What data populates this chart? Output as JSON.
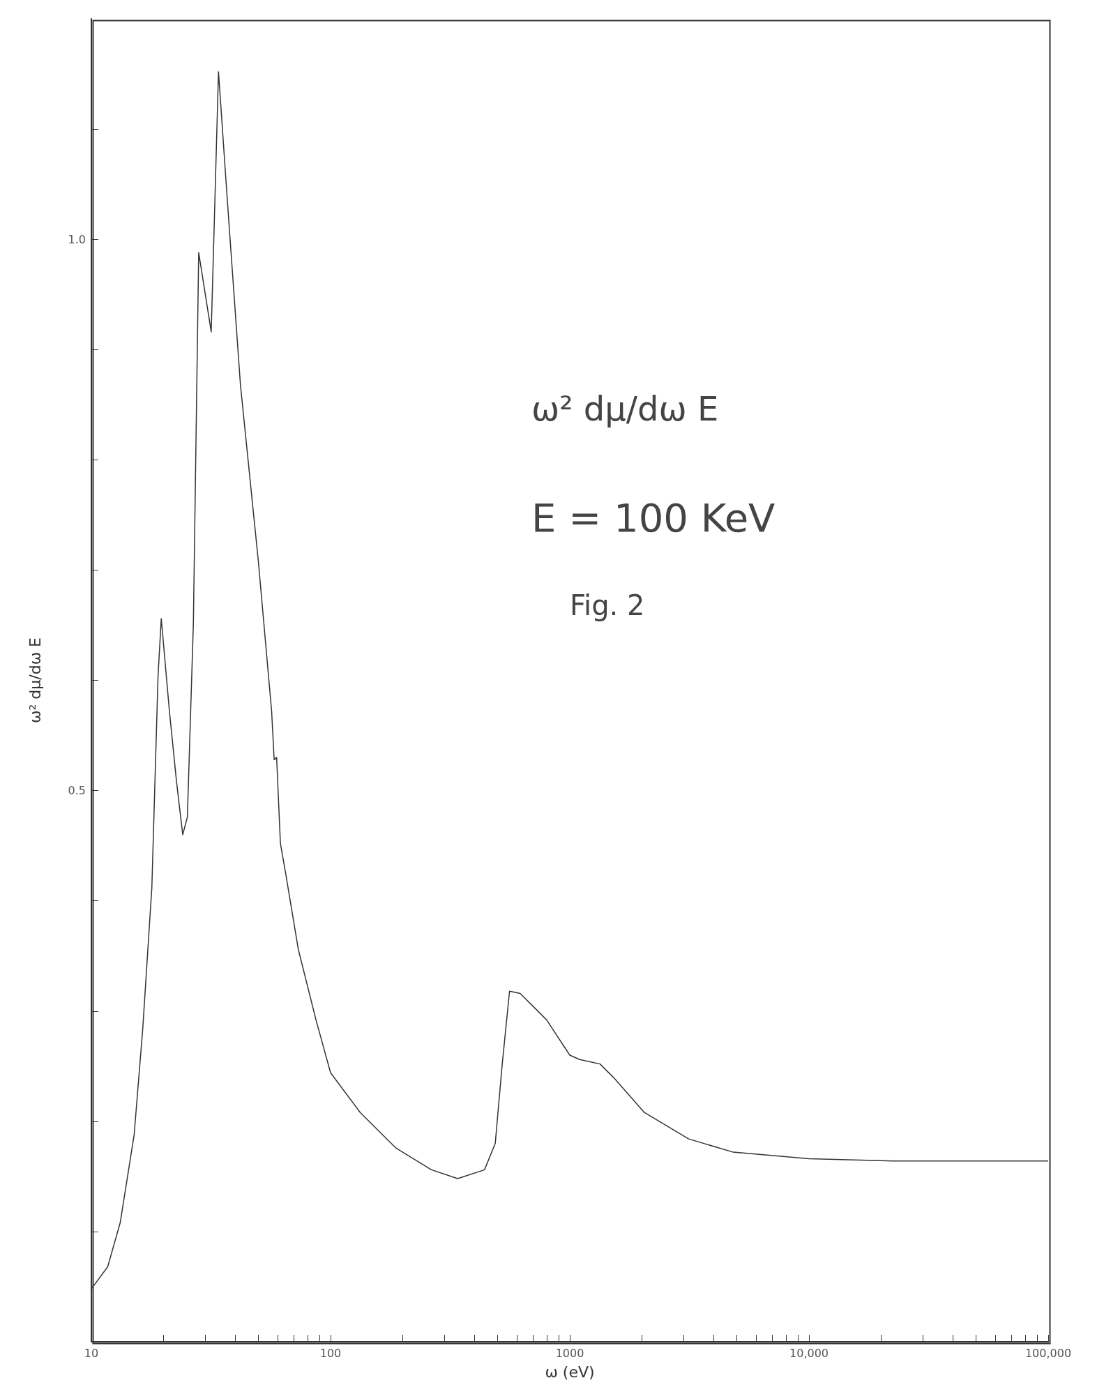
{
  "chart_data": {
    "type": "line",
    "xlabel": "ω (eV)",
    "ylabel": "ω² dμ/dω E",
    "log": "x",
    "grid": false,
    "marker": "none",
    "line_style": "solid",
    "annotations": [
      "ω² dμ/dω E",
      "E = 100 KeV",
      "Fig. 2"
    ],
    "xlim": [
      10,
      100000
    ],
    "ylim": [
      0,
      1.2
    ],
    "xticks": [
      10,
      {
        "value": 20,
        "label": null
      },
      {
        "value": 30,
        "label": null
      },
      {
        "value": 40,
        "label": null
      },
      {
        "value": 50,
        "label": null
      },
      {
        "value": 60,
        "label": null
      },
      {
        "value": 70,
        "label": null
      },
      {
        "value": 80,
        "label": null
      },
      {
        "value": 90,
        "label": null
      },
      100,
      {
        "value": 200,
        "label": null
      },
      {
        "value": 300,
        "label": null
      },
      {
        "value": 400,
        "label": null
      },
      {
        "value": 500,
        "label": null
      },
      {
        "value": 600,
        "label": null
      },
      {
        "value": 700,
        "label": null
      },
      {
        "value": 800,
        "label": null
      },
      {
        "value": 900,
        "label": null
      },
      1000,
      {
        "value": 2000,
        "label": null
      },
      {
        "value": 3000,
        "label": null
      },
      {
        "value": 4000,
        "label": null
      },
      {
        "value": 5000,
        "label": null
      },
      {
        "value": 6000,
        "label": null
      },
      {
        "value": 7000,
        "label": null
      },
      {
        "value": 8000,
        "label": null
      },
      {
        "value": 9000,
        "label": null
      },
      {
        "value": 10000,
        "label": "10,000"
      },
      {
        "value": 20000,
        "label": null
      },
      {
        "value": 30000,
        "label": null
      },
      {
        "value": 40000,
        "label": null
      },
      {
        "value": 50000,
        "label": null
      },
      {
        "value": 60000,
        "label": null
      },
      {
        "value": 70000,
        "label": null
      },
      {
        "value": 80000,
        "label": null
      },
      {
        "value": 90000,
        "label": null
      },
      {
        "value": 100000,
        "label": "100,000"
      }
    ],
    "yticks": [
      {
        "value": 0.1,
        "label": null
      },
      {
        "value": 0.2,
        "label": null
      },
      {
        "value": 0.3,
        "label": null
      },
      {
        "value": 0.4,
        "label": null
      },
      0.5,
      {
        "value": 0.6,
        "label": null
      },
      {
        "value": 0.7,
        "label": null
      },
      {
        "value": 0.8,
        "label": null
      },
      {
        "value": 0.9,
        "label": null
      },
      {
        "value": 1.0,
        "label": "1.0"
      },
      {
        "value": 1.1,
        "label": null
      }
    ],
    "series": [
      {
        "color": "#333333",
        "x": [
          10,
          11.7,
          13.2,
          15.1,
          16.4,
          17.9,
          19.0,
          19.6,
          21.2,
          22.7,
          24.1,
          25.2,
          26.7,
          28.1,
          31.7,
          34.0,
          37.0,
          42.0,
          49.9,
          56.7,
          58.1,
          59.5,
          61.7,
          65.0,
          73.3,
          86.9,
          100,
          133,
          187,
          264,
          340,
          440,
          488,
          522,
          560,
          620,
          800,
          1000,
          1100,
          1337,
          1520,
          2050,
          3140,
          4820,
          10000,
          22400,
          100000
        ],
        "values": [
          0.048,
          0.068,
          0.108,
          0.188,
          0.284,
          0.412,
          0.604,
          0.656,
          0.572,
          0.508,
          0.46,
          0.476,
          0.652,
          0.988,
          0.916,
          1.152,
          1.036,
          0.868,
          0.708,
          0.572,
          0.528,
          0.53,
          0.452,
          0.424,
          0.356,
          0.292,
          0.244,
          0.208,
          0.176,
          0.156,
          0.148,
          0.156,
          0.18,
          0.252,
          0.318,
          0.316,
          0.292,
          0.26,
          0.256,
          0.252,
          0.24,
          0.208,
          0.184,
          0.172,
          0.166,
          0.164,
          0.164
        ]
      }
    ]
  }
}
